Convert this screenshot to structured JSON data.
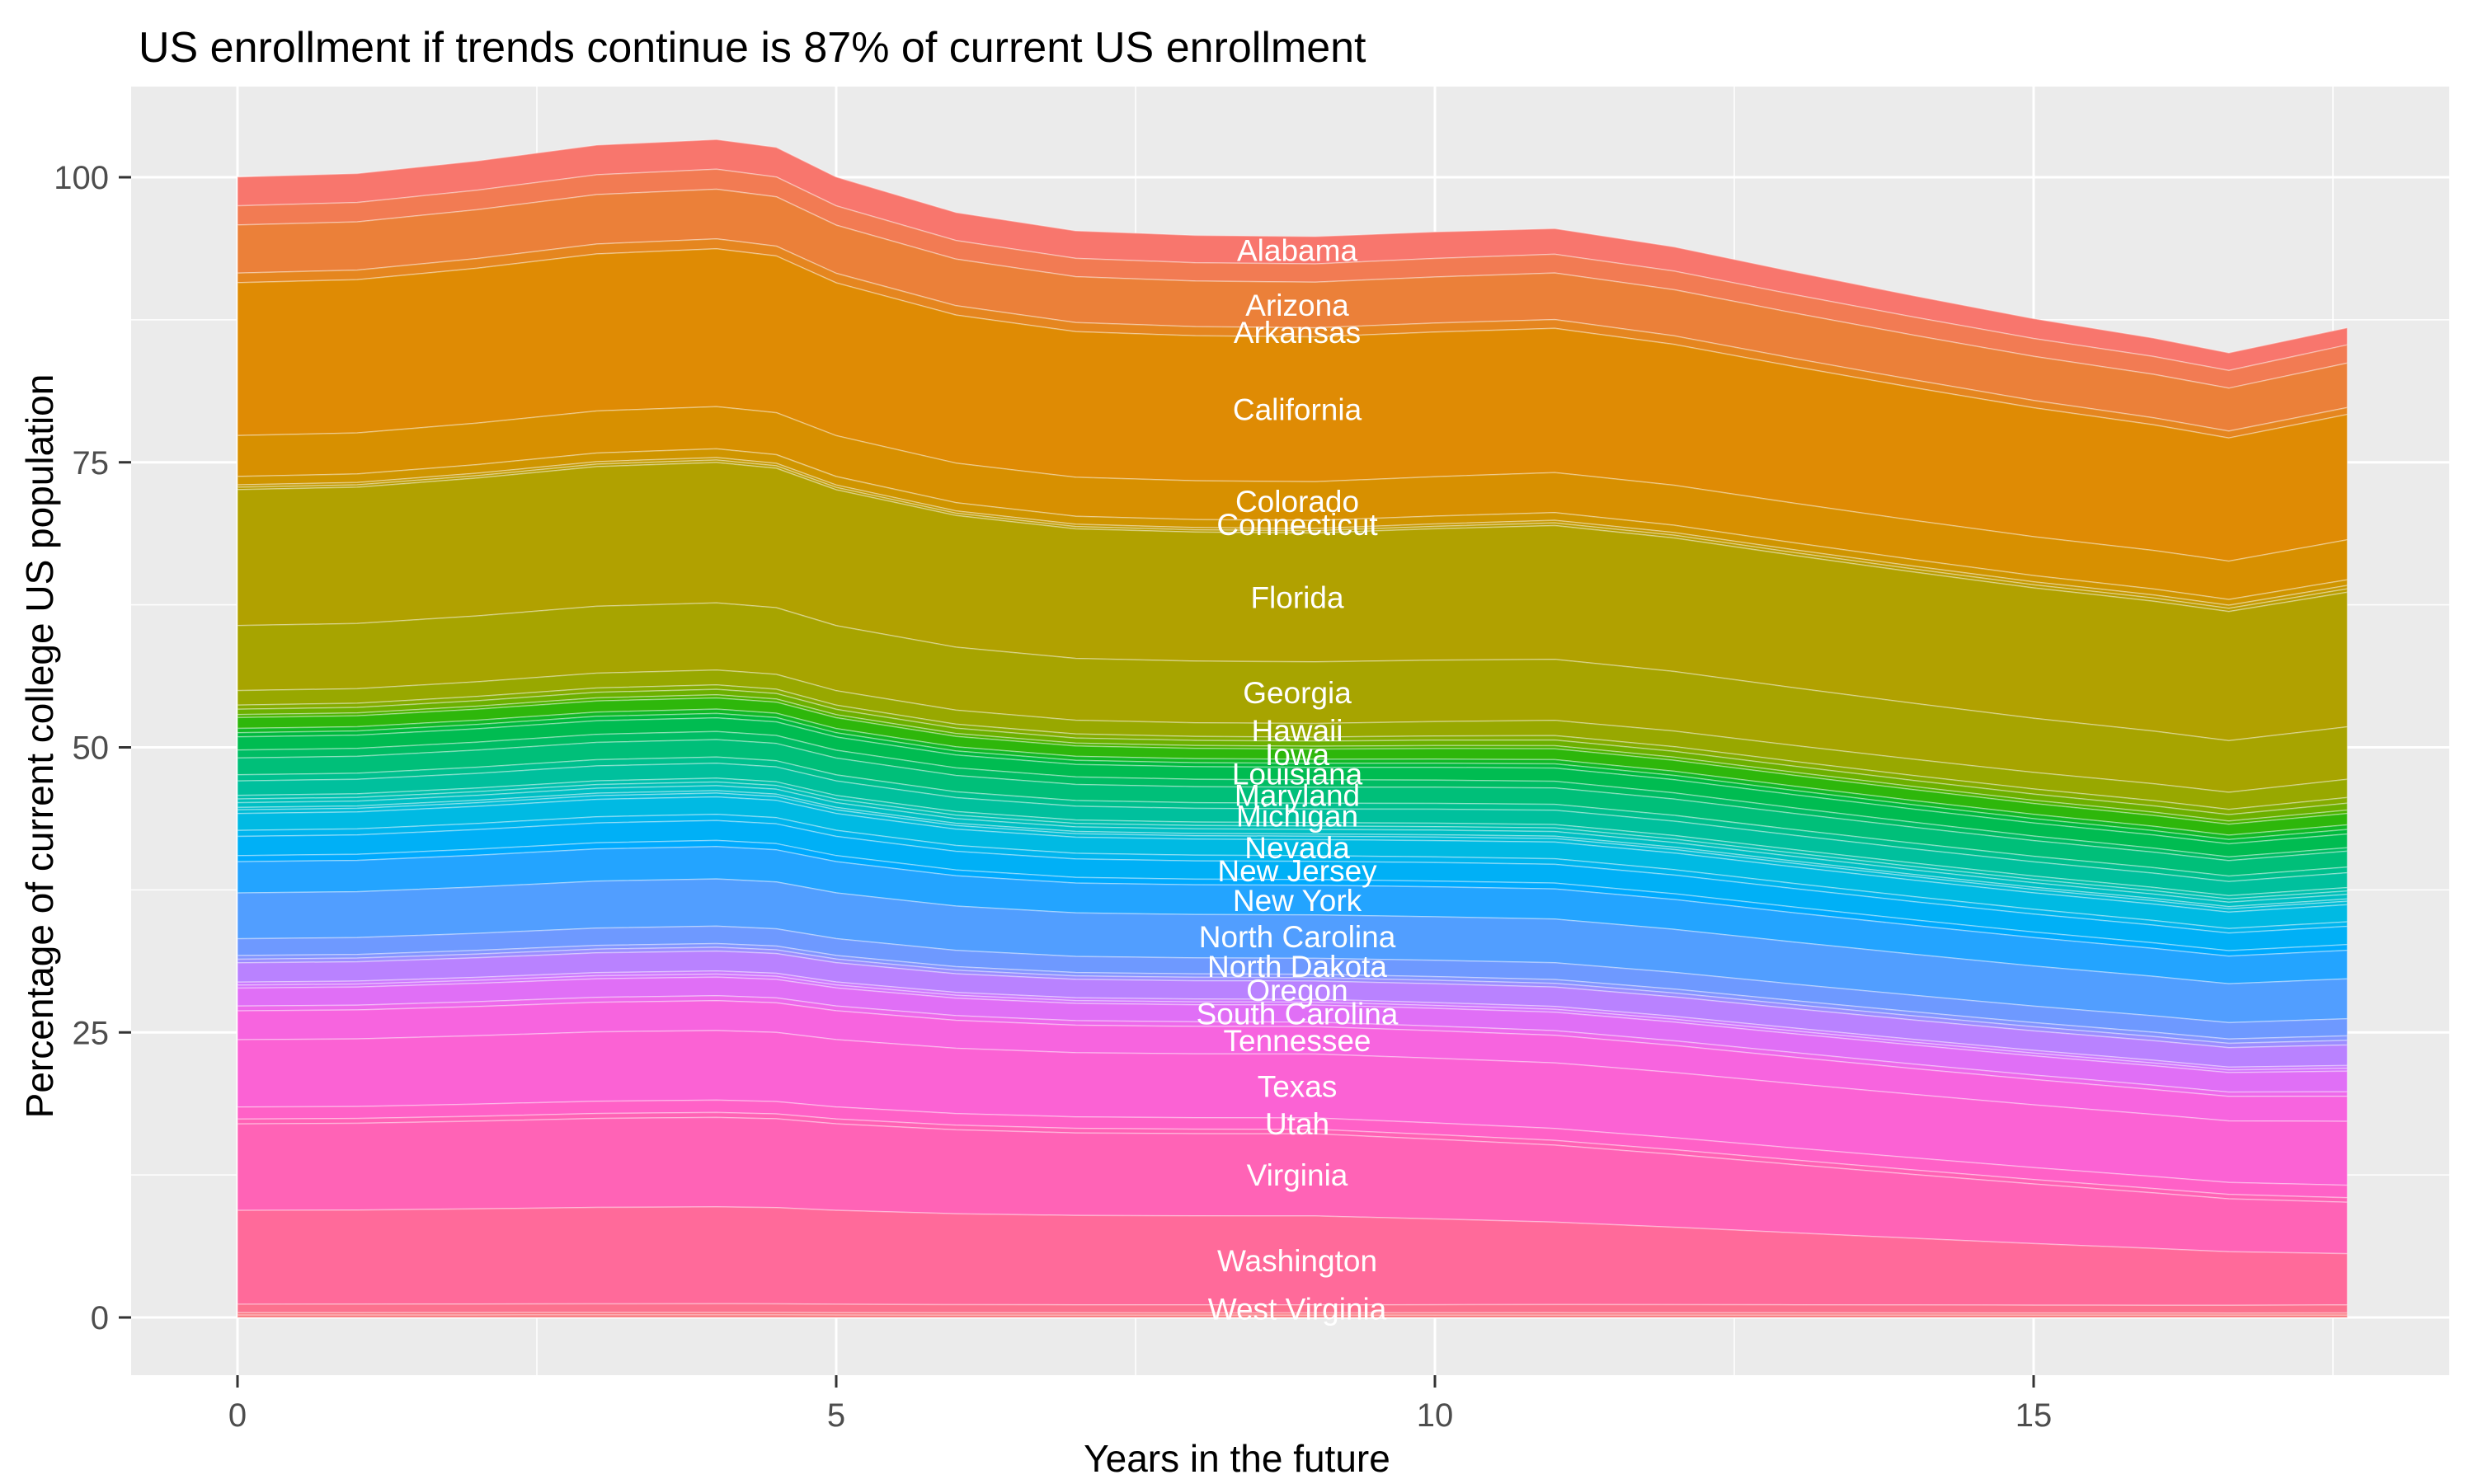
{
  "title": "US enrollment if trends continue is 87% of current US enrollment",
  "colors": {
    "background": "#FFFFFF",
    "panel": "#EBEBEB",
    "grid": "#FFFFFF",
    "tick_mark": "#333333",
    "tick_label": "#4D4D4D",
    "band_label": "#FFFFFF",
    "title_color": "#000000"
  },
  "chart_data": {
    "type": "area",
    "stacked": true,
    "title": "US enrollment if trends continue is 87% of current US enrollment",
    "xlabel": "Years in the future",
    "ylabel": "Percentage of current college US population",
    "x_ticks": [
      0,
      5,
      10,
      15
    ],
    "x_minor_ticks": [
      2.5,
      7.5,
      12.5,
      17.5
    ],
    "y_ticks": [
      0,
      25,
      50,
      75,
      100
    ],
    "y_minor_ticks": [
      12.5,
      37.5,
      62.5,
      87.5
    ],
    "x_range_data": [
      0,
      17.62
    ],
    "y_range_data": [
      0,
      103.3
    ],
    "total_start_pct": 100,
    "total_end_pct": 87,
    "label_x": 8.85,
    "x": [
      0,
      1,
      2,
      3,
      4,
      4.5,
      5,
      6,
      7,
      8,
      9,
      10,
      11,
      12,
      13,
      14,
      15,
      16,
      16.63,
      17.62
    ],
    "shape_multiplier": [
      1.0,
      1.0088,
      1.0259,
      1.0461,
      1.0574,
      1.0534,
      1.0298,
      1.0038,
      0.9931,
      0.995,
      1.0,
      1.0142,
      1.0275,
      1.0204,
      1.0067,
      0.9938,
      0.9817,
      0.9728,
      0.9644,
      1.0
    ],
    "thickness_anchor_x": [
      0,
      9,
      17.62
    ],
    "bands": [
      {
        "label": "Alabama",
        "color": "#F8766D",
        "t": [
          2.53,
          2.4,
          1.5
        ]
      },
      {
        "label": "",
        "color": "#F27B53",
        "t": [
          1.69,
          1.6,
          1.6
        ]
      },
      {
        "label": "Arizona",
        "color": "#EB8039",
        "t": [
          4.22,
          4.0,
          3.9
        ]
      },
      {
        "label": "Arkansas",
        "color": "#E5861F",
        "t": [
          0.84,
          0.8,
          0.6
        ]
      },
      {
        "label": "California",
        "color": "#DF8B04",
        "t": [
          13.4,
          12.7,
          11.0
        ]
      },
      {
        "label": "Colorado",
        "color": "#D79000",
        "t": [
          3.59,
          3.4,
          3.5
        ]
      },
      {
        "label": "Connecticut",
        "color": "#CF9500",
        "t": [
          0.74,
          0.7,
          0.5
        ]
      },
      {
        "label": "",
        "color": "#C59900",
        "t": [
          0.21,
          0.2,
          0.3
        ]
      },
      {
        "label": "",
        "color": "#BA9D00",
        "t": [
          0.21,
          0.2,
          0.3
        ]
      },
      {
        "label": "Florida",
        "color": "#B1A100",
        "t": [
          11.92,
          11.3,
          11.8
        ]
      },
      {
        "label": "Georgia",
        "color": "#A7A400",
        "t": [
          5.7,
          5.4,
          4.6
        ]
      },
      {
        "label": "Hawaii",
        "color": "#98A800",
        "t": [
          1.27,
          1.2,
          1.6
        ]
      },
      {
        "label": "",
        "color": "#85AC00",
        "t": [
          0.37,
          0.35,
          0.5
        ]
      },
      {
        "label": "",
        "color": "#6CB000",
        "t": [
          0.47,
          0.45,
          0.6
        ]
      },
      {
        "label": "",
        "color": "#4CB400",
        "t": [
          0.26,
          0.25,
          0.3
        ]
      },
      {
        "label": "Iowa",
        "color": "#2EB70B",
        "t": [
          0.95,
          0.9,
          1.0
        ]
      },
      {
        "label": "",
        "color": "#12B926",
        "t": [
          0.37,
          0.35,
          0.4
        ]
      },
      {
        "label": "",
        "color": "#00BA3E",
        "t": [
          0.37,
          0.35,
          0.4
        ]
      },
      {
        "label": "Louisiana",
        "color": "#00BC51",
        "t": [
          1.16,
          1.1,
          1.2
        ]
      },
      {
        "label": "",
        "color": "#00BD64",
        "t": [
          0.69,
          0.65,
          0.3
        ]
      },
      {
        "label": "Maryland",
        "color": "#00BF79",
        "t": [
          1.48,
          1.4,
          1.4
        ]
      },
      {
        "label": "",
        "color": "#00C08E",
        "t": [
          0.53,
          0.5,
          0.5
        ]
      },
      {
        "label": "Michigan",
        "color": "#00C09D",
        "t": [
          1.27,
          1.2,
          1.3
        ]
      },
      {
        "label": "",
        "color": "#00C1AC",
        "t": [
          0.32,
          0.3,
          0.3
        ]
      },
      {
        "label": "",
        "color": "#00C0B8",
        "t": [
          0.32,
          0.3,
          0.3
        ]
      },
      {
        "label": "",
        "color": "#00BFC4",
        "t": [
          0.42,
          0.4,
          0.4
        ]
      },
      {
        "label": "",
        "color": "#00BECE",
        "t": [
          0.21,
          0.2,
          0.2
        ]
      },
      {
        "label": "",
        "color": "#00BCD7",
        "t": [
          0.32,
          0.3,
          0.3
        ]
      },
      {
        "label": "Nevada",
        "color": "#00BAE3",
        "t": [
          1.48,
          1.4,
          1.5
        ]
      },
      {
        "label": "",
        "color": "#00B5EE",
        "t": [
          0.53,
          0.5,
          0.4
        ]
      },
      {
        "label": "New Jersey",
        "color": "#00B0F6",
        "t": [
          1.69,
          1.6,
          1.6
        ]
      },
      {
        "label": "",
        "color": "#00AAFE",
        "t": [
          0.53,
          0.5,
          0.5
        ]
      },
      {
        "label": "New York",
        "color": "#23A4FF",
        "t": [
          2.74,
          2.6,
          2.5
        ]
      },
      {
        "label": "North Carolina",
        "color": "#519EFF",
        "t": [
          4.01,
          3.8,
          3.5
        ]
      },
      {
        "label": "North Dakota",
        "color": "#6E99FF",
        "t": [
          1.48,
          1.4,
          1.5
        ]
      },
      {
        "label": "",
        "color": "#8395FF",
        "t": [
          0.32,
          0.3,
          0.4
        ]
      },
      {
        "label": "",
        "color": "#9C8DFF",
        "t": [
          0.32,
          0.3,
          0.4
        ]
      },
      {
        "label": "Oregon",
        "color": "#B982FF",
        "t": [
          1.69,
          1.6,
          1.8
        ]
      },
      {
        "label": "",
        "color": "#CC7AFE",
        "t": [
          0.26,
          0.25,
          0.25
        ]
      },
      {
        "label": "",
        "color": "#D575FC",
        "t": [
          0.26,
          0.25,
          0.25
        ]
      },
      {
        "label": "South Carolina",
        "color": "#E06FF6",
        "t": [
          1.58,
          1.5,
          1.8
        ]
      },
      {
        "label": "",
        "color": "#ED69EB",
        "t": [
          0.42,
          0.4,
          0.4
        ]
      },
      {
        "label": "Tennessee",
        "color": "#F764DF",
        "t": [
          2.53,
          2.4,
          2.2
        ]
      },
      {
        "label": "Texas",
        "color": "#FB62D4",
        "t": [
          5.91,
          5.6,
          5.6
        ]
      },
      {
        "label": "Utah",
        "color": "#FF61C7",
        "t": [
          1.05,
          1.0,
          1.1
        ]
      },
      {
        "label": "",
        "color": "#FF62B5",
        "t": [
          0.42,
          0.4,
          0.4
        ]
      },
      {
        "label": "Virginia",
        "color": "#FF63B6",
        "t": [
          7.59,
          7.2,
          4.5
        ]
      },
      {
        "label": "Washington",
        "color": "#FF6A9A",
        "t": [
          8.23,
          7.8,
          4.5
        ]
      },
      {
        "label": "West Virginia",
        "color": "#FC718E",
        "t": [
          0.74,
          0.7,
          0.7
        ]
      },
      {
        "label": "",
        "color": "#FA747D",
        "t": [
          0.21,
          0.2,
          0.2
        ]
      },
      {
        "label": "",
        "color": "#F97579",
        "t": [
          0.21,
          0.2,
          0.2
        ]
      }
    ]
  },
  "x_axis": {
    "title": "Years in the future",
    "tick_labels": [
      "0",
      "5",
      "10",
      "15"
    ]
  },
  "y_axis": {
    "title": "Percentage of current college US population",
    "tick_labels": [
      "0",
      "25",
      "50",
      "75",
      "100"
    ]
  }
}
